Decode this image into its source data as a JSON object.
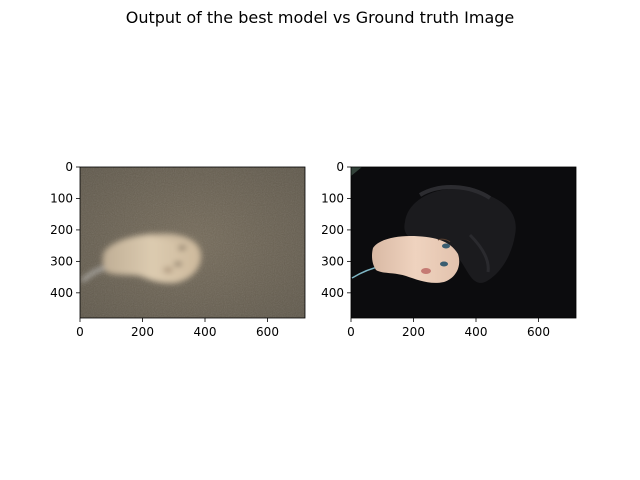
{
  "figure": {
    "title": "Output of the best model vs Ground truth Image",
    "background": "#ffffff"
  },
  "chart_data": [
    {
      "type": "image",
      "panel": "left",
      "content": "model output image: blurry mannequin head on brownish-grey background",
      "xlim": [
        0,
        720
      ],
      "ylim": [
        480,
        0
      ],
      "x_ticks": [
        0,
        200,
        400,
        600
      ],
      "y_ticks": [
        0,
        100,
        200,
        300,
        400
      ],
      "colors": {
        "background": "#6e6555",
        "head": "#d8c8ae",
        "cable": "#d0d0d0"
      }
    },
    {
      "type": "image",
      "panel": "right",
      "content": "ground truth image: mannequin head with dark hair on near-black background",
      "xlim": [
        0,
        720
      ],
      "ylim": [
        480,
        0
      ],
      "x_ticks": [
        0,
        200,
        400,
        600
      ],
      "y_ticks": [
        0,
        100,
        200,
        300,
        400
      ],
      "colors": {
        "background": "#0c0c0e",
        "hair": "#1a1a1d",
        "head": "#e5c7b2",
        "cable": "#7fb6c4"
      }
    }
  ]
}
